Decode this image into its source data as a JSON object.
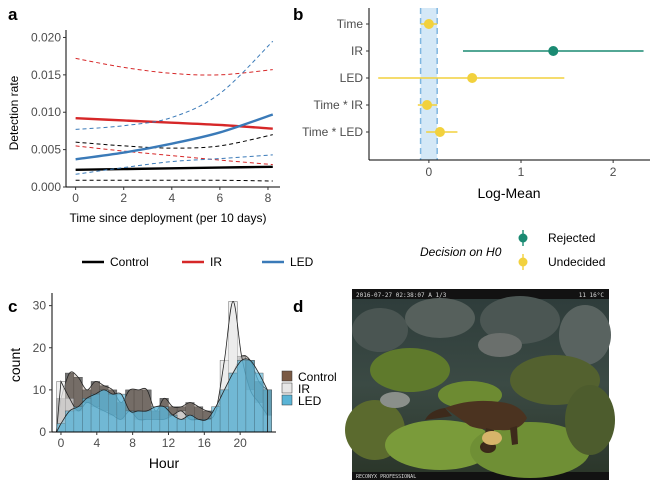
{
  "panels": {
    "a": "a",
    "b": "b",
    "c": "c",
    "d": "d"
  },
  "chart_data": [
    {
      "type": "line",
      "xlabel": "Time since deployment (per 10 days)",
      "ylabel": "Detection rate",
      "xlim": [
        -0.4,
        8.5
      ],
      "ylim": [
        0,
        0.021
      ],
      "x_ticks": [
        0,
        2,
        4,
        6,
        8
      ],
      "y_ticks": [
        0.0,
        0.005,
        0.01,
        0.015,
        0.02
      ],
      "y_tick_labels": [
        "0.000",
        "0.005",
        "0.010",
        "0.015",
        "0.020"
      ],
      "legend_position": "bottom",
      "series": [
        {
          "name": "Control",
          "color": "#000000",
          "x": [
            0,
            2,
            4,
            6,
            8.2
          ],
          "mean": [
            0.0023,
            0.0024,
            0.0025,
            0.0026,
            0.0027
          ],
          "lower": [
            0.0009,
            0.0009,
            0.0009,
            0.0009,
            0.0008
          ],
          "upper": [
            0.006,
            0.0055,
            0.0052,
            0.0055,
            0.007
          ]
        },
        {
          "name": "IR",
          "color": "#d62728",
          "x": [
            0,
            2,
            4,
            6,
            8.2
          ],
          "mean": [
            0.0092,
            0.0089,
            0.0086,
            0.0083,
            0.0078
          ],
          "lower": [
            0.0055,
            0.0048,
            0.0042,
            0.0036,
            0.003
          ],
          "upper": [
            0.0172,
            0.016,
            0.0152,
            0.015,
            0.0157
          ]
        },
        {
          "name": "LED",
          "color": "#3a7ab8",
          "x": [
            0,
            2,
            4,
            6,
            8.2
          ],
          "mean": [
            0.0037,
            0.0046,
            0.0058,
            0.0073,
            0.0097
          ],
          "lower": [
            0.0017,
            0.0026,
            0.0034,
            0.0038,
            0.0043
          ],
          "upper": [
            0.0077,
            0.0082,
            0.0093,
            0.0125,
            0.0195
          ]
        }
      ]
    },
    {
      "type": "scatter",
      "xlabel": "Log-Mean",
      "xlim": [
        -0.65,
        2.4
      ],
      "x_ticks": [
        0,
        1,
        2
      ],
      "categories": [
        "Time",
        "IR",
        "LED",
        "Time * IR",
        "Time * LED"
      ],
      "estimates": [
        0.0,
        1.35,
        0.47,
        -0.02,
        0.12
      ],
      "ci_low": [
        -0.09,
        0.37,
        -0.55,
        -0.12,
        -0.03
      ],
      "ci_high": [
        0.09,
        2.33,
        1.47,
        0.09,
        0.31
      ],
      "decision": [
        "Undecided",
        "Rejected",
        "Undecided",
        "Undecided",
        "Undecided"
      ],
      "legend_title": "Decision on H0",
      "legend": [
        {
          "name": "Rejected",
          "color": "#1a8a72"
        },
        {
          "name": "Undecided",
          "color": "#f2d13d"
        }
      ],
      "band_color": "#c9e2f5",
      "band_line_color": "#7fb6e0"
    },
    {
      "type": "bar",
      "xlabel": "Hour",
      "ylabel": "count",
      "xlim": [
        -1,
        24
      ],
      "ylim": [
        0,
        33
      ],
      "x_ticks": [
        0,
        4,
        8,
        12,
        16,
        20
      ],
      "y_ticks": [
        0,
        10,
        20,
        30
      ],
      "bin_width": 0.96,
      "series": [
        {
          "name": "Control",
          "color": "#7a5a44",
          "values": [
            8,
            14,
            13,
            10,
            12,
            11,
            10,
            7,
            10,
            10,
            10,
            5,
            8,
            6,
            6,
            7,
            6,
            5,
            5,
            10,
            14,
            18,
            17,
            12,
            10
          ]
        },
        {
          "name": "IR",
          "color": "#e6e6e6",
          "values": [
            12,
            8,
            5,
            7,
            6,
            5,
            4,
            3,
            5,
            3,
            3,
            3,
            3,
            4,
            5,
            3,
            3,
            3,
            5,
            17,
            31,
            18,
            10,
            7,
            4
          ]
        },
        {
          "name": "LED",
          "color": "#5ab4d6",
          "values": [
            2,
            5,
            6,
            8,
            9,
            10,
            9,
            9,
            5,
            5,
            5,
            6,
            6,
            4,
            3,
            4,
            3,
            3,
            6,
            10,
            14,
            17,
            17,
            14,
            10
          ]
        }
      ],
      "legend_position": "right"
    }
  ],
  "photo": {
    "timestamp_text": "2016-07-27 02:38:07   A 1/3",
    "brand_text": "RECONYX PROFESSIONAL",
    "corner_text": "11  16°C"
  }
}
